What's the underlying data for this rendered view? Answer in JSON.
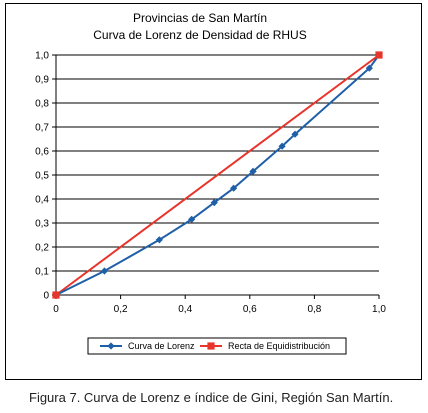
{
  "caption": "Figura 7. Curva de Lorenz e índice de Gini, Región San Martín.",
  "chart_data": {
    "type": "line",
    "title": "Provincias de San Martín",
    "subtitle": "Curva de Lorenz de Densidad de RHUS",
    "xlabel": "",
    "ylabel": "",
    "xlim": [
      0,
      1.0
    ],
    "ylim": [
      0,
      1.0
    ],
    "x_ticks": [
      "0",
      "0,2",
      "0,4",
      "0,6",
      "0,8",
      "1,0"
    ],
    "y_ticks": [
      "0",
      "0,1",
      "0,2",
      "0,3",
      "0,4",
      "0,5",
      "0,6",
      "0,7",
      "0,8",
      "0,9",
      "1,0"
    ],
    "grid": "horizontal",
    "legend_position": "bottom",
    "series": [
      {
        "name": "Curva de Lorenz",
        "color": "#1f5fa8",
        "marker": "diamond",
        "points": [
          {
            "x": 0,
            "y": 0
          },
          {
            "x": 0.15,
            "y": 0.1
          },
          {
            "x": 0.32,
            "y": 0.23
          },
          {
            "x": 0.42,
            "y": 0.315
          },
          {
            "x": 0.49,
            "y": 0.385
          },
          {
            "x": 0.55,
            "y": 0.445
          },
          {
            "x": 0.61,
            "y": 0.515
          },
          {
            "x": 0.7,
            "y": 0.62
          },
          {
            "x": 0.74,
            "y": 0.67
          },
          {
            "x": 0.97,
            "y": 0.945
          },
          {
            "x": 1.0,
            "y": 1.0
          }
        ]
      },
      {
        "name": "Recta de Equidistribución",
        "color": "#e8352b",
        "marker": "square",
        "points": [
          {
            "x": 0,
            "y": 0
          },
          {
            "x": 1.0,
            "y": 1.0
          }
        ]
      }
    ]
  }
}
